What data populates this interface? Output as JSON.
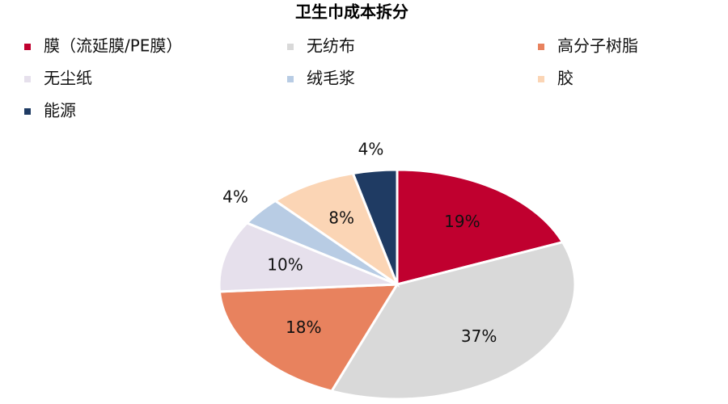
{
  "chart_data": {
    "type": "pie",
    "title": "卫生巾成本拆分",
    "categories": [
      "膜（流延膜/PE膜）",
      "无纺布",
      "高分子树脂",
      "无尘纸",
      "绒毛浆",
      "胶",
      "能源"
    ],
    "values": [
      19,
      37,
      18,
      10,
      4,
      8,
      4
    ],
    "value_labels": [
      "19%",
      "37%",
      "18%",
      "10%",
      "4%",
      "8%",
      "4%"
    ],
    "colors": [
      "#C0002F",
      "#D9D9D9",
      "#E8825E",
      "#E6E0EC",
      "#B8CCE4",
      "#FBD5B5",
      "#1F3B63"
    ]
  }
}
